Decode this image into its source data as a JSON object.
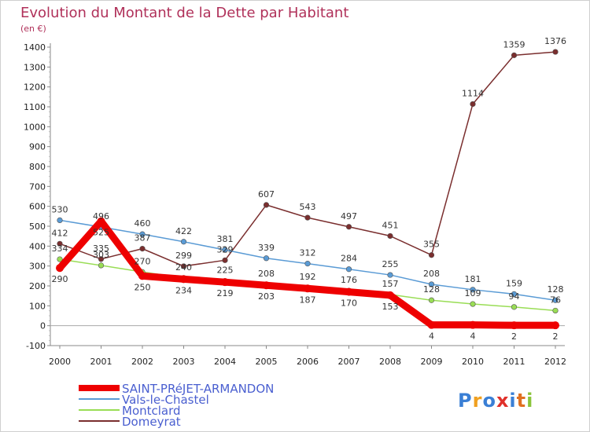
{
  "chart_data": {
    "type": "line",
    "title": "Evolution du Montant de la Dette par Habitant",
    "subtitle": "(en €)",
    "xlabel": "",
    "ylabel": "",
    "x": [
      2000,
      2001,
      2002,
      2003,
      2004,
      2005,
      2006,
      2007,
      2008,
      2009,
      2010,
      2011,
      2012
    ],
    "ylim": [
      -100,
      1400
    ],
    "yticks": [
      -100,
      0,
      100,
      200,
      300,
      400,
      500,
      600,
      700,
      800,
      900,
      1000,
      1100,
      1200,
      1300,
      1400
    ],
    "grid": false,
    "legend_position": "bottom-left",
    "series": [
      {
        "name": "SAINT-PRéJET-ARMANDON",
        "color": "#ee0000",
        "values": [
          290,
          525,
          250,
          234,
          219,
          203,
          187,
          170,
          153,
          4,
          4,
          2,
          2
        ],
        "labels": [
          "290",
          "525",
          "250",
          "234",
          "219",
          "203",
          "187",
          "170",
          "153",
          "4",
          "4",
          "2",
          "2"
        ]
      },
      {
        "name": "Vals-le-Chastel",
        "color": "#5a9bd5",
        "values": [
          530,
          496,
          460,
          422,
          381,
          339,
          312,
          284,
          255,
          208,
          181,
          159,
          128
        ],
        "labels": [
          "530",
          "496",
          "460",
          "422",
          "381",
          "339",
          "312",
          "284",
          "255",
          "208",
          "181",
          "159",
          "128"
        ]
      },
      {
        "name": "Montclard",
        "color": "#99dd55",
        "values": [
          334,
          303,
          270,
          240,
          225,
          208,
          192,
          176,
          157,
          128,
          109,
          94,
          76
        ],
        "labels": [
          "334",
          "303",
          "270",
          "240",
          "225",
          "208",
          "192",
          "176",
          "157",
          "128",
          "109",
          "94",
          "76"
        ]
      },
      {
        "name": "Domeyrat",
        "color": "#7a2e2e",
        "values": [
          412,
          335,
          387,
          299,
          329,
          607,
          543,
          497,
          451,
          355,
          1114,
          1359,
          1376
        ],
        "labels": [
          "412",
          "335",
          "387",
          "299",
          "329",
          "607",
          "543",
          "497",
          "451",
          "355",
          "1114",
          "1359",
          "1376"
        ]
      }
    ]
  },
  "logo": {
    "text": "Proxiti"
  }
}
